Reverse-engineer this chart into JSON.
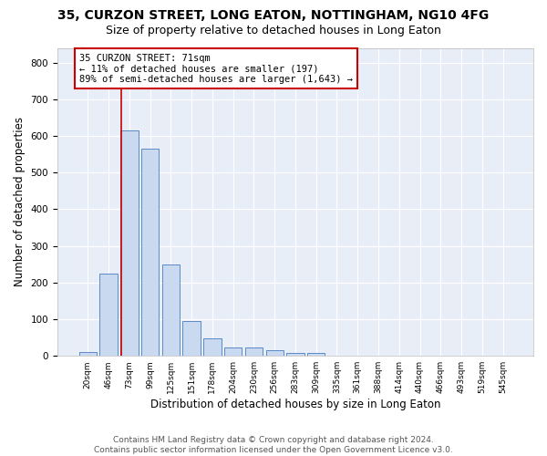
{
  "title": "35, CURZON STREET, LONG EATON, NOTTINGHAM, NG10 4FG",
  "subtitle": "Size of property relative to detached houses in Long Eaton",
  "xlabel": "Distribution of detached houses by size in Long Eaton",
  "ylabel": "Number of detached properties",
  "bar_values": [
    10,
    225,
    615,
    565,
    250,
    95,
    48,
    22,
    22,
    15,
    7,
    7,
    0,
    0,
    0,
    0,
    0,
    0,
    0,
    0,
    0
  ],
  "bin_labels": [
    "20sqm",
    "46sqm",
    "73sqm",
    "99sqm",
    "125sqm",
    "151sqm",
    "178sqm",
    "204sqm",
    "230sqm",
    "256sqm",
    "283sqm",
    "309sqm",
    "335sqm",
    "361sqm",
    "388sqm",
    "414sqm",
    "440sqm",
    "466sqm",
    "493sqm",
    "519sqm",
    "545sqm"
  ],
  "bar_color": "#c9d9f0",
  "bar_edge_color": "#5b8ac5",
  "red_line_x": 1.6,
  "annotation_text": "35 CURZON STREET: 71sqm\n← 11% of detached houses are smaller (197)\n89% of semi-detached houses are larger (1,643) →",
  "annotation_box_color": "#ffffff",
  "annotation_border_color": "#cc0000",
  "vline_color": "#cc0000",
  "ylim": [
    0,
    840
  ],
  "yticks": [
    0,
    100,
    200,
    300,
    400,
    500,
    600,
    700,
    800
  ],
  "bg_color": "#e8eef8",
  "footnote": "Contains HM Land Registry data © Crown copyright and database right 2024.\nContains public sector information licensed under the Open Government Licence v3.0.",
  "title_fontsize": 10,
  "subtitle_fontsize": 9,
  "xlabel_fontsize": 8.5,
  "ylabel_fontsize": 8.5,
  "footnote_fontsize": 6.5
}
